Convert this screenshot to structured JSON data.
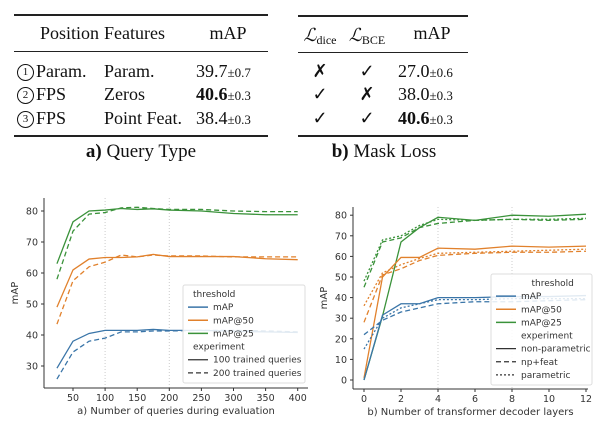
{
  "table_a": {
    "headers": [
      "Position",
      "Features",
      "mAP"
    ],
    "rows": [
      {
        "num": "1",
        "position": "Param.",
        "features": "Param.",
        "map": "39.7",
        "pm": "±0.7",
        "bold": false
      },
      {
        "num": "2",
        "position": "FPS",
        "features": "Zeros",
        "map": "40.6",
        "pm": "±0.3",
        "bold": true
      },
      {
        "num": "3",
        "position": "FPS",
        "features": "Point Feat.",
        "map": "38.4",
        "pm": "±0.3",
        "bold": false
      }
    ],
    "caption_letter": "a)",
    "caption": "Query Type"
  },
  "table_b": {
    "headers": [
      {
        "sym": "ℒ",
        "sub": "dice"
      },
      {
        "sym": "ℒ",
        "sub": "BCE"
      },
      {
        "label": "mAP"
      }
    ],
    "rows": [
      {
        "dice": "✗",
        "bce": "✓",
        "map": "27.0",
        "pm": "±0.6",
        "bold": false
      },
      {
        "dice": "✓",
        "bce": "✗",
        "map": "38.0",
        "pm": "±0.3",
        "bold": false
      },
      {
        "dice": "✓",
        "bce": "✓",
        "map": "40.6",
        "pm": "±0.3",
        "bold": true
      }
    ],
    "caption_letter": "b)",
    "caption": "Mask Loss"
  },
  "chart_data": [
    {
      "type": "line",
      "xlabel": "a) Number of queries during evaluation",
      "ylabel": "mAP",
      "xticks": [
        50,
        100,
        150,
        200,
        250,
        300,
        350,
        400
      ],
      "yticks": [
        30,
        40,
        50,
        60,
        70,
        80
      ],
      "xlim": [
        5,
        412
      ],
      "ylim": [
        23,
        84
      ],
      "vgrid": [
        100,
        200
      ],
      "x": [
        25,
        50,
        75,
        100,
        125,
        150,
        175,
        200,
        250,
        300,
        350,
        400
      ],
      "colors": {
        "mAP": "#3a75a8",
        "mAP@50": "#e1812c",
        "mAP@25": "#3a923a"
      },
      "legend": {
        "position": "lower-right",
        "threshold_title": "threshold",
        "experiment_title": "experiment",
        "thresholds": [
          "mAP",
          "mAP@50",
          "mAP@25"
        ],
        "experiments": [
          {
            "name": "100 trained queries",
            "dash": "solid"
          },
          {
            "name": "200 trained queries",
            "dash": "dashed"
          }
        ]
      },
      "series": [
        {
          "threshold": "mAP@25",
          "experiment": "100 trained queries",
          "values": [
            63,
            76.5,
            80,
            80.3,
            80.8,
            80.5,
            80.7,
            80.3,
            80,
            79.2,
            78.8,
            78.8
          ]
        },
        {
          "threshold": "mAP@25",
          "experiment": "200 trained queries",
          "values": [
            58,
            73.5,
            79,
            79.5,
            81,
            81.2,
            80.8,
            80.5,
            80.5,
            80,
            79.8,
            79.8
          ]
        },
        {
          "threshold": "mAP@50",
          "experiment": "100 trained queries",
          "values": [
            49,
            61,
            64.5,
            65,
            65,
            65.2,
            66,
            65.3,
            65.3,
            65.3,
            64.6,
            64.3
          ]
        },
        {
          "threshold": "mAP@50",
          "experiment": "200 trained queries",
          "values": [
            43.5,
            57.5,
            62,
            63.5,
            65.8,
            65.2,
            65.8,
            65.5,
            65.5,
            65.2,
            65.2,
            65.2
          ]
        },
        {
          "threshold": "mAP",
          "experiment": "100 trained queries",
          "values": [
            29.3,
            38,
            40.5,
            41.5,
            41.5,
            41.5,
            41.8,
            41.5,
            41.5,
            41.2,
            41,
            40.8
          ]
        },
        {
          "threshold": "mAP",
          "experiment": "200 trained queries",
          "values": [
            25.8,
            34.5,
            38,
            39,
            41,
            41,
            41.3,
            41.3,
            41.5,
            41.5,
            41.3,
            41
          ]
        }
      ]
    },
    {
      "type": "line",
      "xlabel": "b) Number of transformer decoder layers",
      "ylabel": "mAP",
      "xticks": [
        0,
        2,
        4,
        6,
        8,
        10,
        12
      ],
      "yticks": [
        0,
        10,
        20,
        30,
        40,
        50,
        60,
        70,
        80
      ],
      "xlim": [
        -0.6,
        12.3
      ],
      "ylim": [
        -4,
        84
      ],
      "vgrid": [
        4,
        8
      ],
      "x": [
        0,
        1,
        2,
        3,
        4,
        6,
        8,
        10,
        12
      ],
      "colors": {
        "mAP": "#3a75a8",
        "mAP@50": "#e1812c",
        "mAP@25": "#3a923a"
      },
      "legend": {
        "position": "lower-right",
        "threshold_title": "threshold",
        "experiment_title": "experiment",
        "thresholds": [
          "mAP",
          "mAP@50",
          "mAP@25"
        ],
        "experiments": [
          {
            "name": "non-parametric",
            "dash": "solid"
          },
          {
            "name": "np+feat",
            "dash": "dashed"
          },
          {
            "name": "parametric",
            "dash": "dotted"
          }
        ]
      },
      "series": [
        {
          "threshold": "mAP@25",
          "experiment": "non-parametric",
          "values": [
            0,
            31,
            67,
            74,
            79,
            77.5,
            80,
            79.5,
            80.5
          ]
        },
        {
          "threshold": "mAP@25",
          "experiment": "np+feat",
          "values": [
            45,
            67,
            69,
            74,
            76,
            77.5,
            78,
            77.5,
            78
          ]
        },
        {
          "threshold": "mAP@25",
          "experiment": "parametric",
          "values": [
            48,
            68,
            70,
            75,
            78,
            77.5,
            78,
            78,
            78.5
          ]
        },
        {
          "threshold": "mAP@50",
          "experiment": "non-parametric",
          "values": [
            1,
            50,
            59.5,
            59.5,
            64,
            63.5,
            65,
            64.5,
            65
          ]
        },
        {
          "threshold": "mAP@50",
          "experiment": "np+feat",
          "values": [
            28,
            51,
            54,
            58,
            60.5,
            61.5,
            62,
            62,
            62.5
          ]
        },
        {
          "threshold": "mAP@50",
          "experiment": "parametric",
          "values": [
            36,
            52,
            56,
            59,
            61.5,
            62,
            62.5,
            63,
            63.5
          ]
        },
        {
          "threshold": "mAP",
          "experiment": "non-parametric",
          "values": [
            0,
            31.5,
            37,
            37,
            40,
            40,
            40.5,
            40.5,
            41
          ]
        },
        {
          "threshold": "mAP",
          "experiment": "np+feat",
          "values": [
            22,
            29,
            33,
            35,
            37,
            38,
            38,
            38.5,
            39
          ]
        },
        {
          "threshold": "mAP",
          "experiment": "parametric",
          "values": [
            15,
            30,
            35,
            37,
            39,
            39,
            39.5,
            39.5,
            39.5
          ]
        }
      ]
    }
  ]
}
